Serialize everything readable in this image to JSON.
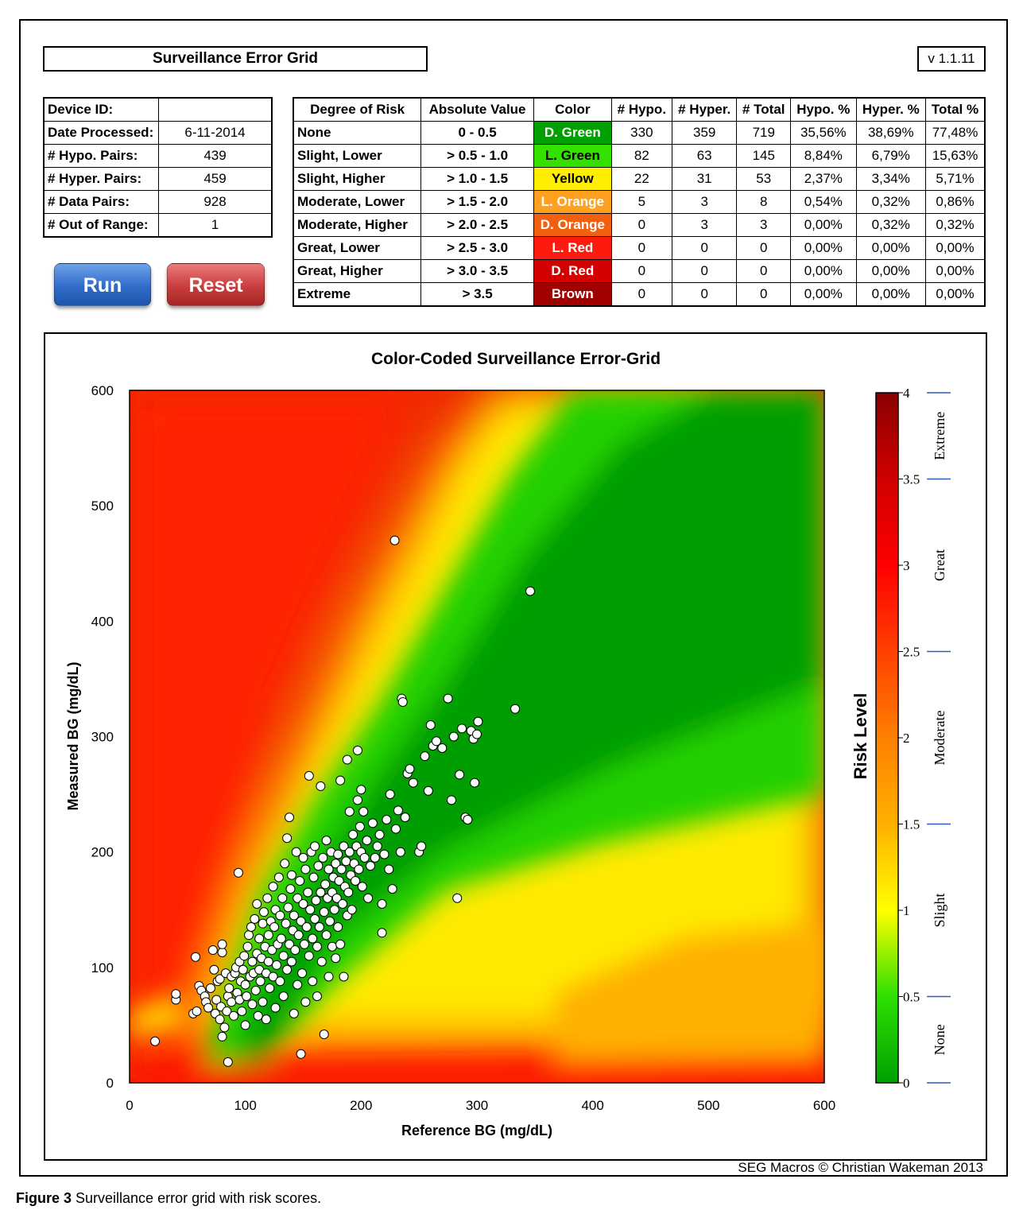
{
  "header": {
    "title": "Surveillance Error Grid",
    "version": "v 1.1.11"
  },
  "info": [
    {
      "key": "Device ID:",
      "value": ""
    },
    {
      "key": "Date Processed:",
      "value": "6-11-2014"
    },
    {
      "key": "# Hypo. Pairs:",
      "value": "439"
    },
    {
      "key": "# Hyper. Pairs:",
      "value": "459"
    },
    {
      "key": "# Data Pairs:",
      "value": "928"
    },
    {
      "key": "# Out of Range:",
      "value": "1"
    }
  ],
  "buttons": {
    "run": "Run",
    "reset": "Reset"
  },
  "risk_table": {
    "headers": [
      "Degree of Risk",
      "Absolute Value",
      "Color",
      "# Hypo.",
      "# Hyper.",
      "# Total",
      "Hypo. %",
      "Hyper. %",
      "Total %"
    ],
    "rows": [
      {
        "degree": "None",
        "abs": "0 - 0.5",
        "color": "D. Green",
        "bg": "#00a000",
        "fg": "#ffffff",
        "hypo": "330",
        "hyper": "359",
        "total": "719",
        "hypo_pct": "35,56%",
        "hyper_pct": "38,69%",
        "total_pct": "77,48%"
      },
      {
        "degree": "Slight, Lower",
        "abs": "> 0.5 - 1.0",
        "color": "L. Green",
        "bg": "#33e000",
        "fg": "#000000",
        "hypo": "82",
        "hyper": "63",
        "total": "145",
        "hypo_pct": "8,84%",
        "hyper_pct": "6,79%",
        "total_pct": "15,63%"
      },
      {
        "degree": "Slight, Higher",
        "abs": "> 1.0 - 1.5",
        "color": "Yellow",
        "bg": "#ffee00",
        "fg": "#000000",
        "hypo": "22",
        "hyper": "31",
        "total": "53",
        "hypo_pct": "2,37%",
        "hyper_pct": "3,34%",
        "total_pct": "5,71%"
      },
      {
        "degree": "Moderate, Lower",
        "abs": "> 1.5 - 2.0",
        "color": "L. Orange",
        "bg": "#ffa020",
        "fg": "#ffffff",
        "hypo": "5",
        "hyper": "3",
        "total": "8",
        "hypo_pct": "0,54%",
        "hyper_pct": "0,32%",
        "total_pct": "0,86%"
      },
      {
        "degree": "Moderate, Higher",
        "abs": "> 2.0 - 2.5",
        "color": "D. Orange",
        "bg": "#f06010",
        "fg": "#ffffff",
        "hypo": "0",
        "hyper": "3",
        "total": "3",
        "hypo_pct": "0,00%",
        "hyper_pct": "0,32%",
        "total_pct": "0,32%"
      },
      {
        "degree": "Great, Lower",
        "abs": "> 2.5 - 3.0",
        "color": "L. Red",
        "bg": "#ff1a10",
        "fg": "#ffffff",
        "hypo": "0",
        "hyper": "0",
        "total": "0",
        "hypo_pct": "0,00%",
        "hyper_pct": "0,00%",
        "total_pct": "0,00%"
      },
      {
        "degree": "Great, Higher",
        "abs": "> 3.0 - 3.5",
        "color": "D. Red",
        "bg": "#d40000",
        "fg": "#ffffff",
        "hypo": "0",
        "hyper": "0",
        "total": "0",
        "hypo_pct": "0,00%",
        "hyper_pct": "0,00%",
        "total_pct": "0,00%"
      },
      {
        "degree": "Extreme",
        "abs": "> 3.5",
        "color": "Brown",
        "bg": "#a00000",
        "fg": "#ffffff",
        "hypo": "0",
        "hyper": "0",
        "total": "0",
        "hypo_pct": "0,00%",
        "hyper_pct": "0,00%",
        "total_pct": "0,00%"
      }
    ]
  },
  "chart_data": {
    "type": "scatter",
    "title": "Color-Coded Surveillance Error-Grid",
    "xlabel": "Reference BG (mg/dL)",
    "ylabel": "Measured BG (mg/dL)",
    "xlim": [
      0,
      600
    ],
    "ylim": [
      0,
      600
    ],
    "xticks": [
      "0",
      "100",
      "200",
      "300",
      "400",
      "500",
      "600"
    ],
    "yticks": [
      "0",
      "100",
      "200",
      "300",
      "400",
      "500",
      "600"
    ],
    "grid": false,
    "background": "risk heatmap (green along identity line, yellow/orange/red with increasing error)",
    "colorbar": {
      "label": "Risk Level",
      "range": [
        0,
        4
      ],
      "ticks": [
        "0",
        "0.5",
        "1",
        "1.5",
        "2",
        "2.5",
        "3",
        "3.5",
        "4"
      ],
      "zones": [
        "None",
        "Slight",
        "Moderate",
        "Great",
        "Extreme"
      ],
      "stops": [
        {
          "v": 0,
          "color": "#00a000"
        },
        {
          "v": 0.5,
          "color": "#2ee000"
        },
        {
          "v": 1,
          "color": "#ffff00"
        },
        {
          "v": 1.5,
          "color": "#ffb000"
        },
        {
          "v": 2,
          "color": "#ff8000"
        },
        {
          "v": 2.5,
          "color": "#ff4000"
        },
        {
          "v": 3,
          "color": "#ff0000"
        },
        {
          "v": 3.5,
          "color": "#d00000"
        },
        {
          "v": 4,
          "color": "#8a0000"
        }
      ]
    },
    "points": [
      [
        22,
        36
      ],
      [
        40,
        72
      ],
      [
        40,
        77
      ],
      [
        55,
        60
      ],
      [
        58,
        62
      ],
      [
        57,
        109
      ],
      [
        60,
        84
      ],
      [
        62,
        80
      ],
      [
        65,
        75
      ],
      [
        66,
        70
      ],
      [
        68,
        65
      ],
      [
        70,
        82
      ],
      [
        72,
        115
      ],
      [
        73,
        98
      ],
      [
        74,
        60
      ],
      [
        75,
        72
      ],
      [
        76,
        88
      ],
      [
        78,
        55
      ],
      [
        78,
        90
      ],
      [
        79,
        66
      ],
      [
        80,
        113
      ],
      [
        80,
        120
      ],
      [
        80,
        40
      ],
      [
        82,
        48
      ],
      [
        83,
        95
      ],
      [
        84,
        62
      ],
      [
        85,
        18
      ],
      [
        85,
        75
      ],
      [
        86,
        82
      ],
      [
        88,
        92
      ],
      [
        88,
        70
      ],
      [
        90,
        58
      ],
      [
        91,
        95
      ],
      [
        92,
        100
      ],
      [
        93,
        78
      ],
      [
        94,
        182
      ],
      [
        95,
        105
      ],
      [
        95,
        72
      ],
      [
        96,
        88
      ],
      [
        97,
        62
      ],
      [
        98,
        98
      ],
      [
        99,
        110
      ],
      [
        100,
        85
      ],
      [
        100,
        50
      ],
      [
        101,
        75
      ],
      [
        102,
        118
      ],
      [
        103,
        128
      ],
      [
        104,
        92
      ],
      [
        105,
        135
      ],
      [
        106,
        105
      ],
      [
        106,
        68
      ],
      [
        107,
        95
      ],
      [
        108,
        142
      ],
      [
        109,
        80
      ],
      [
        110,
        112
      ],
      [
        110,
        155
      ],
      [
        111,
        58
      ],
      [
        112,
        98
      ],
      [
        112,
        125
      ],
      [
        113,
        88
      ],
      [
        114,
        108
      ],
      [
        115,
        138
      ],
      [
        115,
        70
      ],
      [
        116,
        148
      ],
      [
        117,
        118
      ],
      [
        118,
        95
      ],
      [
        118,
        55
      ],
      [
        119,
        160
      ],
      [
        120,
        128
      ],
      [
        120,
        105
      ],
      [
        121,
        82
      ],
      [
        122,
        140
      ],
      [
        123,
        115
      ],
      [
        124,
        92
      ],
      [
        124,
        170
      ],
      [
        125,
        135
      ],
      [
        126,
        150
      ],
      [
        126,
        65
      ],
      [
        127,
        102
      ],
      [
        128,
        120
      ],
      [
        129,
        178
      ],
      [
        130,
        145
      ],
      [
        130,
        88
      ],
      [
        131,
        125
      ],
      [
        132,
        160
      ],
      [
        133,
        110
      ],
      [
        133,
        75
      ],
      [
        134,
        190
      ],
      [
        135,
        138
      ],
      [
        136,
        98
      ],
      [
        136,
        212
      ],
      [
        137,
        152
      ],
      [
        138,
        120
      ],
      [
        138,
        230
      ],
      [
        139,
        168
      ],
      [
        140,
        105
      ],
      [
        140,
        180
      ],
      [
        141,
        132
      ],
      [
        142,
        145
      ],
      [
        142,
        60
      ],
      [
        143,
        115
      ],
      [
        144,
        200
      ],
      [
        145,
        160
      ],
      [
        145,
        85
      ],
      [
        146,
        128
      ],
      [
        147,
        175
      ],
      [
        148,
        140
      ],
      [
        148,
        25
      ],
      [
        149,
        95
      ],
      [
        150,
        155
      ],
      [
        150,
        195
      ],
      [
        151,
        120
      ],
      [
        152,
        185
      ],
      [
        152,
        70
      ],
      [
        153,
        135
      ],
      [
        154,
        165
      ],
      [
        155,
        110
      ],
      [
        155,
        266
      ],
      [
        156,
        150
      ],
      [
        157,
        200
      ],
      [
        158,
        125
      ],
      [
        158,
        88
      ],
      [
        159,
        178
      ],
      [
        160,
        142
      ],
      [
        160,
        205
      ],
      [
        161,
        158
      ],
      [
        162,
        118
      ],
      [
        162,
        75
      ],
      [
        163,
        188
      ],
      [
        164,
        135
      ],
      [
        165,
        165
      ],
      [
        165,
        257
      ],
      [
        166,
        105
      ],
      [
        167,
        195
      ],
      [
        168,
        148
      ],
      [
        168,
        42
      ],
      [
        169,
        172
      ],
      [
        170,
        128
      ],
      [
        170,
        210
      ],
      [
        171,
        160
      ],
      [
        172,
        185
      ],
      [
        172,
        92
      ],
      [
        173,
        140
      ],
      [
        174,
        200
      ],
      [
        175,
        118
      ],
      [
        175,
        165
      ],
      [
        176,
        178
      ],
      [
        177,
        150
      ],
      [
        178,
        190
      ],
      [
        178,
        108
      ],
      [
        179,
        160
      ],
      [
        180,
        198
      ],
      [
        180,
        135
      ],
      [
        181,
        175
      ],
      [
        182,
        262
      ],
      [
        182,
        120
      ],
      [
        183,
        185
      ],
      [
        184,
        155
      ],
      [
        185,
        205
      ],
      [
        185,
        92
      ],
      [
        186,
        170
      ],
      [
        187,
        192
      ],
      [
        188,
        145
      ],
      [
        188,
        280
      ],
      [
        189,
        165
      ],
      [
        190,
        200
      ],
      [
        190,
        235
      ],
      [
        191,
        180
      ],
      [
        192,
        150
      ],
      [
        193,
        215
      ],
      [
        194,
        190
      ],
      [
        195,
        175
      ],
      [
        196,
        205
      ],
      [
        197,
        245
      ],
      [
        197,
        288
      ],
      [
        198,
        185
      ],
      [
        199,
        222
      ],
      [
        200,
        200
      ],
      [
        200,
        254
      ],
      [
        201,
        170
      ],
      [
        202,
        235
      ],
      [
        203,
        195
      ],
      [
        205,
        210
      ],
      [
        206,
        160
      ],
      [
        208,
        188
      ],
      [
        210,
        225
      ],
      [
        212,
        195
      ],
      [
        214,
        205
      ],
      [
        216,
        215
      ],
      [
        218,
        155
      ],
      [
        218,
        130
      ],
      [
        220,
        198
      ],
      [
        222,
        228
      ],
      [
        224,
        185
      ],
      [
        225,
        250
      ],
      [
        227,
        168
      ],
      [
        229,
        470
      ],
      [
        230,
        220
      ],
      [
        232,
        236
      ],
      [
        234,
        200
      ],
      [
        235,
        333
      ],
      [
        236,
        330
      ],
      [
        238,
        230
      ],
      [
        240,
        268
      ],
      [
        242,
        272
      ],
      [
        245,
        260
      ],
      [
        250,
        200
      ],
      [
        252,
        205
      ],
      [
        255,
        283
      ],
      [
        258,
        253
      ],
      [
        260,
        310
      ],
      [
        262,
        292
      ],
      [
        265,
        296
      ],
      [
        270,
        290
      ],
      [
        275,
        333
      ],
      [
        278,
        245
      ],
      [
        280,
        300
      ],
      [
        283,
        160
      ],
      [
        285,
        267
      ],
      [
        287,
        307
      ],
      [
        290,
        230
      ],
      [
        292,
        228
      ],
      [
        295,
        305
      ],
      [
        297,
        298
      ],
      [
        298,
        260
      ],
      [
        300,
        302
      ],
      [
        301,
        313
      ],
      [
        333,
        324
      ],
      [
        346,
        426
      ]
    ]
  },
  "footer": {
    "credit": "SEG Macros © Christian Wakeman 2013",
    "caption_bold": "Figure 3",
    "caption_text": " Surveillance error grid with risk scores."
  }
}
